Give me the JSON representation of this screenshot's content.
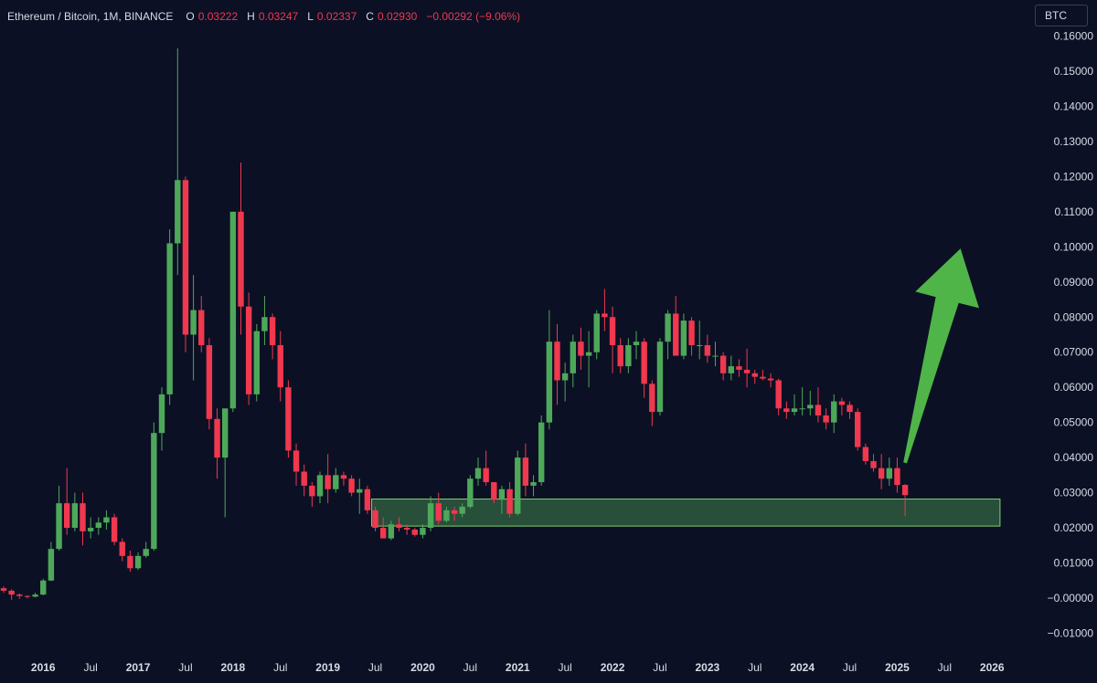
{
  "legend": {
    "symbol": "Ethereum / Bitcoin, 1M, BINANCE",
    "o_label": "O",
    "o_value": "0.03222",
    "h_label": "H",
    "h_value": "0.03247",
    "l_label": "L",
    "l_value": "0.02337",
    "c_label": "C",
    "c_value": "0.02930",
    "change": "−0.00292 (−9.06%)"
  },
  "unit_badge": "BTC",
  "colors": {
    "background": "#0c1024",
    "up": "#4ea85a",
    "down": "#f0384f",
    "zone_fill": "#4ea85a",
    "arrow": "#4fb548",
    "axis_text": "#d7dbe6"
  },
  "chart_data": {
    "type": "candlestick",
    "title": "Ethereum / Bitcoin, 1M, BINANCE",
    "ylim": [
      -0.013,
      0.163
    ],
    "y_ticks": [
      {
        "value": 0.16,
        "label": "0.16000"
      },
      {
        "value": 0.15,
        "label": "0.15000"
      },
      {
        "value": 0.14,
        "label": "0.14000"
      },
      {
        "value": 0.13,
        "label": "0.13000"
      },
      {
        "value": 0.12,
        "label": "0.12000"
      },
      {
        "value": 0.11,
        "label": "0.11000"
      },
      {
        "value": 0.1,
        "label": "0.10000"
      },
      {
        "value": 0.09,
        "label": "0.09000"
      },
      {
        "value": 0.08,
        "label": "0.08000"
      },
      {
        "value": 0.07,
        "label": "0.07000"
      },
      {
        "value": 0.06,
        "label": "0.06000"
      },
      {
        "value": 0.05,
        "label": "0.05000"
      },
      {
        "value": 0.04,
        "label": "0.04000"
      },
      {
        "value": 0.03,
        "label": "0.03000"
      },
      {
        "value": 0.02,
        "label": "0.02000"
      },
      {
        "value": 0.01,
        "label": "0.01000"
      },
      {
        "value": 0.0,
        "label": "−0.00000"
      },
      {
        "value": -0.01,
        "label": "−0.01000"
      }
    ],
    "x_start": "2015-08",
    "x_ticks": [
      {
        "date": "2016-01",
        "label": "2016",
        "bold": true
      },
      {
        "date": "2016-07",
        "label": "Jul",
        "bold": false
      },
      {
        "date": "2017-01",
        "label": "2017",
        "bold": true
      },
      {
        "date": "2017-07",
        "label": "Jul",
        "bold": false
      },
      {
        "date": "2018-01",
        "label": "2018",
        "bold": true
      },
      {
        "date": "2018-07",
        "label": "Jul",
        "bold": false
      },
      {
        "date": "2019-01",
        "label": "2019",
        "bold": true
      },
      {
        "date": "2019-07",
        "label": "Jul",
        "bold": false
      },
      {
        "date": "2020-01",
        "label": "2020",
        "bold": true
      },
      {
        "date": "2020-07",
        "label": "Jul",
        "bold": false
      },
      {
        "date": "2021-01",
        "label": "2021",
        "bold": true
      },
      {
        "date": "2021-07",
        "label": "Jul",
        "bold": false
      },
      {
        "date": "2022-01",
        "label": "2022",
        "bold": true
      },
      {
        "date": "2022-07",
        "label": "Jul",
        "bold": false
      },
      {
        "date": "2023-01",
        "label": "2023",
        "bold": true
      },
      {
        "date": "2023-07",
        "label": "Jul",
        "bold": false
      },
      {
        "date": "2024-01",
        "label": "2024",
        "bold": true
      },
      {
        "date": "2024-07",
        "label": "Jul",
        "bold": false
      },
      {
        "date": "2025-01",
        "label": "2025",
        "bold": true
      },
      {
        "date": "2025-07",
        "label": "Jul",
        "bold": false
      },
      {
        "date": "2026-01",
        "label": "2026",
        "bold": true
      }
    ],
    "candles": [
      {
        "date": "2015-08",
        "o": 0.0028,
        "h": 0.0033,
        "l": 0.0015,
        "c": 0.0021
      },
      {
        "date": "2015-09",
        "o": 0.0021,
        "h": 0.0025,
        "l": -0.0005,
        "c": 0.001
      },
      {
        "date": "2015-10",
        "o": 0.001,
        "h": 0.0013,
        "l": -0.0002,
        "c": 0.0006
      },
      {
        "date": "2015-11",
        "o": 0.0006,
        "h": 0.0008,
        "l": -0.0001,
        "c": 0.0004
      },
      {
        "date": "2015-12",
        "o": 0.0004,
        "h": 0.0015,
        "l": 0.0002,
        "c": 0.001
      },
      {
        "date": "2016-01",
        "o": 0.001,
        "h": 0.0055,
        "l": 0.0008,
        "c": 0.005
      },
      {
        "date": "2016-02",
        "o": 0.005,
        "h": 0.016,
        "l": 0.0048,
        "c": 0.014
      },
      {
        "date": "2016-03",
        "o": 0.014,
        "h": 0.032,
        "l": 0.0135,
        "c": 0.027
      },
      {
        "date": "2016-04",
        "o": 0.027,
        "h": 0.037,
        "l": 0.018,
        "c": 0.02
      },
      {
        "date": "2016-05",
        "o": 0.02,
        "h": 0.03,
        "l": 0.019,
        "c": 0.027
      },
      {
        "date": "2016-06",
        "o": 0.027,
        "h": 0.03,
        "l": 0.015,
        "c": 0.019
      },
      {
        "date": "2016-07",
        "o": 0.019,
        "h": 0.023,
        "l": 0.017,
        "c": 0.02
      },
      {
        "date": "2016-08",
        "o": 0.02,
        "h": 0.023,
        "l": 0.018,
        "c": 0.0215
      },
      {
        "date": "2016-09",
        "o": 0.0215,
        "h": 0.025,
        "l": 0.0195,
        "c": 0.023
      },
      {
        "date": "2016-10",
        "o": 0.023,
        "h": 0.024,
        "l": 0.015,
        "c": 0.016
      },
      {
        "date": "2016-11",
        "o": 0.016,
        "h": 0.017,
        "l": 0.0105,
        "c": 0.012
      },
      {
        "date": "2016-12",
        "o": 0.012,
        "h": 0.0135,
        "l": 0.0075,
        "c": 0.0085
      },
      {
        "date": "2017-01",
        "o": 0.0085,
        "h": 0.013,
        "l": 0.008,
        "c": 0.012
      },
      {
        "date": "2017-02",
        "o": 0.012,
        "h": 0.016,
        "l": 0.0115,
        "c": 0.014
      },
      {
        "date": "2017-03",
        "o": 0.014,
        "h": 0.05,
        "l": 0.0135,
        "c": 0.047
      },
      {
        "date": "2017-04",
        "o": 0.047,
        "h": 0.06,
        "l": 0.042,
        "c": 0.058
      },
      {
        "date": "2017-05",
        "o": 0.058,
        "h": 0.105,
        "l": 0.055,
        "c": 0.101
      },
      {
        "date": "2017-06",
        "o": 0.101,
        "h": 0.1565,
        "l": 0.092,
        "c": 0.119
      },
      {
        "date": "2017-07",
        "o": 0.119,
        "h": 0.12,
        "l": 0.07,
        "c": 0.075
      },
      {
        "date": "2017-08",
        "o": 0.075,
        "h": 0.092,
        "l": 0.062,
        "c": 0.082
      },
      {
        "date": "2017-09",
        "o": 0.082,
        "h": 0.086,
        "l": 0.07,
        "c": 0.072
      },
      {
        "date": "2017-10",
        "o": 0.072,
        "h": 0.074,
        "l": 0.048,
        "c": 0.051
      },
      {
        "date": "2017-11",
        "o": 0.051,
        "h": 0.054,
        "l": 0.034,
        "c": 0.04
      },
      {
        "date": "2017-12",
        "o": 0.04,
        "h": 0.054,
        "l": 0.023,
        "c": 0.054
      },
      {
        "date": "2018-01",
        "o": 0.054,
        "h": 0.11,
        "l": 0.053,
        "c": 0.11
      },
      {
        "date": "2018-02",
        "o": 0.11,
        "h": 0.124,
        "l": 0.075,
        "c": 0.083
      },
      {
        "date": "2018-03",
        "o": 0.083,
        "h": 0.087,
        "l": 0.055,
        "c": 0.058
      },
      {
        "date": "2018-04",
        "o": 0.058,
        "h": 0.078,
        "l": 0.056,
        "c": 0.076
      },
      {
        "date": "2018-05",
        "o": 0.076,
        "h": 0.086,
        "l": 0.072,
        "c": 0.08
      },
      {
        "date": "2018-06",
        "o": 0.08,
        "h": 0.081,
        "l": 0.068,
        "c": 0.072
      },
      {
        "date": "2018-07",
        "o": 0.072,
        "h": 0.076,
        "l": 0.056,
        "c": 0.06
      },
      {
        "date": "2018-08",
        "o": 0.06,
        "h": 0.062,
        "l": 0.04,
        "c": 0.042
      },
      {
        "date": "2018-09",
        "o": 0.042,
        "h": 0.044,
        "l": 0.032,
        "c": 0.036
      },
      {
        "date": "2018-10",
        "o": 0.036,
        "h": 0.038,
        "l": 0.029,
        "c": 0.032
      },
      {
        "date": "2018-11",
        "o": 0.032,
        "h": 0.033,
        "l": 0.026,
        "c": 0.029
      },
      {
        "date": "2018-12",
        "o": 0.029,
        "h": 0.036,
        "l": 0.027,
        "c": 0.035
      },
      {
        "date": "2019-01",
        "o": 0.035,
        "h": 0.041,
        "l": 0.027,
        "c": 0.031
      },
      {
        "date": "2019-02",
        "o": 0.031,
        "h": 0.037,
        "l": 0.03,
        "c": 0.035
      },
      {
        "date": "2019-03",
        "o": 0.035,
        "h": 0.036,
        "l": 0.032,
        "c": 0.034
      },
      {
        "date": "2019-04",
        "o": 0.034,
        "h": 0.035,
        "l": 0.029,
        "c": 0.03
      },
      {
        "date": "2019-05",
        "o": 0.03,
        "h": 0.034,
        "l": 0.024,
        "c": 0.031
      },
      {
        "date": "2019-06",
        "o": 0.031,
        "h": 0.032,
        "l": 0.024,
        "c": 0.025
      },
      {
        "date": "2019-07",
        "o": 0.025,
        "h": 0.026,
        "l": 0.019,
        "c": 0.02
      },
      {
        "date": "2019-08",
        "o": 0.02,
        "h": 0.023,
        "l": 0.017,
        "c": 0.017
      },
      {
        "date": "2019-09",
        "o": 0.017,
        "h": 0.022,
        "l": 0.0165,
        "c": 0.021
      },
      {
        "date": "2019-10",
        "o": 0.021,
        "h": 0.023,
        "l": 0.019,
        "c": 0.02
      },
      {
        "date": "2019-11",
        "o": 0.02,
        "h": 0.021,
        "l": 0.018,
        "c": 0.0195
      },
      {
        "date": "2019-12",
        "o": 0.0195,
        "h": 0.02,
        "l": 0.0175,
        "c": 0.018
      },
      {
        "date": "2020-01",
        "o": 0.018,
        "h": 0.021,
        "l": 0.017,
        "c": 0.02
      },
      {
        "date": "2020-02",
        "o": 0.02,
        "h": 0.029,
        "l": 0.019,
        "c": 0.027
      },
      {
        "date": "2020-03",
        "o": 0.027,
        "h": 0.03,
        "l": 0.021,
        "c": 0.022
      },
      {
        "date": "2020-04",
        "o": 0.022,
        "h": 0.026,
        "l": 0.0215,
        "c": 0.025
      },
      {
        "date": "2020-05",
        "o": 0.025,
        "h": 0.026,
        "l": 0.022,
        "c": 0.024
      },
      {
        "date": "2020-06",
        "o": 0.024,
        "h": 0.027,
        "l": 0.023,
        "c": 0.026
      },
      {
        "date": "2020-07",
        "o": 0.026,
        "h": 0.035,
        "l": 0.0255,
        "c": 0.034
      },
      {
        "date": "2020-08",
        "o": 0.034,
        "h": 0.04,
        "l": 0.032,
        "c": 0.037
      },
      {
        "date": "2020-09",
        "o": 0.037,
        "h": 0.042,
        "l": 0.032,
        "c": 0.033
      },
      {
        "date": "2020-10",
        "o": 0.033,
        "h": 0.033,
        "l": 0.027,
        "c": 0.028
      },
      {
        "date": "2020-11",
        "o": 0.028,
        "h": 0.032,
        "l": 0.024,
        "c": 0.031
      },
      {
        "date": "2020-12",
        "o": 0.031,
        "h": 0.033,
        "l": 0.023,
        "c": 0.024
      },
      {
        "date": "2021-01",
        "o": 0.024,
        "h": 0.042,
        "l": 0.0235,
        "c": 0.04
      },
      {
        "date": "2021-02",
        "o": 0.04,
        "h": 0.044,
        "l": 0.029,
        "c": 0.032
      },
      {
        "date": "2021-03",
        "o": 0.032,
        "h": 0.035,
        "l": 0.029,
        "c": 0.033
      },
      {
        "date": "2021-04",
        "o": 0.033,
        "h": 0.052,
        "l": 0.032,
        "c": 0.05
      },
      {
        "date": "2021-05",
        "o": 0.05,
        "h": 0.082,
        "l": 0.048,
        "c": 0.073
      },
      {
        "date": "2021-06",
        "o": 0.073,
        "h": 0.078,
        "l": 0.055,
        "c": 0.062
      },
      {
        "date": "2021-07",
        "o": 0.062,
        "h": 0.067,
        "l": 0.056,
        "c": 0.064
      },
      {
        "date": "2021-08",
        "o": 0.064,
        "h": 0.075,
        "l": 0.06,
        "c": 0.073
      },
      {
        "date": "2021-09",
        "o": 0.073,
        "h": 0.077,
        "l": 0.065,
        "c": 0.069
      },
      {
        "date": "2021-10",
        "o": 0.069,
        "h": 0.076,
        "l": 0.06,
        "c": 0.07
      },
      {
        "date": "2021-11",
        "o": 0.07,
        "h": 0.082,
        "l": 0.068,
        "c": 0.081
      },
      {
        "date": "2021-12",
        "o": 0.081,
        "h": 0.088,
        "l": 0.076,
        "c": 0.08
      },
      {
        "date": "2022-01",
        "o": 0.08,
        "h": 0.083,
        "l": 0.064,
        "c": 0.072
      },
      {
        "date": "2022-02",
        "o": 0.072,
        "h": 0.074,
        "l": 0.064,
        "c": 0.066
      },
      {
        "date": "2022-03",
        "o": 0.066,
        "h": 0.074,
        "l": 0.064,
        "c": 0.072
      },
      {
        "date": "2022-04",
        "o": 0.072,
        "h": 0.076,
        "l": 0.068,
        "c": 0.073
      },
      {
        "date": "2022-05",
        "o": 0.073,
        "h": 0.074,
        "l": 0.057,
        "c": 0.061
      },
      {
        "date": "2022-06",
        "o": 0.061,
        "h": 0.062,
        "l": 0.049,
        "c": 0.053
      },
      {
        "date": "2022-07",
        "o": 0.053,
        "h": 0.074,
        "l": 0.052,
        "c": 0.073
      },
      {
        "date": "2022-08",
        "o": 0.073,
        "h": 0.082,
        "l": 0.068,
        "c": 0.081
      },
      {
        "date": "2022-09",
        "o": 0.081,
        "h": 0.086,
        "l": 0.069,
        "c": 0.069
      },
      {
        "date": "2022-10",
        "o": 0.069,
        "h": 0.081,
        "l": 0.068,
        "c": 0.079
      },
      {
        "date": "2022-11",
        "o": 0.079,
        "h": 0.08,
        "l": 0.069,
        "c": 0.072
      },
      {
        "date": "2022-12",
        "o": 0.072,
        "h": 0.079,
        "l": 0.068,
        "c": 0.072
      },
      {
        "date": "2023-01",
        "o": 0.072,
        "h": 0.075,
        "l": 0.067,
        "c": 0.069
      },
      {
        "date": "2023-02",
        "o": 0.069,
        "h": 0.073,
        "l": 0.066,
        "c": 0.069
      },
      {
        "date": "2023-03",
        "o": 0.069,
        "h": 0.07,
        "l": 0.062,
        "c": 0.064
      },
      {
        "date": "2023-04",
        "o": 0.064,
        "h": 0.069,
        "l": 0.062,
        "c": 0.066
      },
      {
        "date": "2023-05",
        "o": 0.066,
        "h": 0.068,
        "l": 0.063,
        "c": 0.065
      },
      {
        "date": "2023-06",
        "o": 0.065,
        "h": 0.071,
        "l": 0.06,
        "c": 0.064
      },
      {
        "date": "2023-07",
        "o": 0.064,
        "h": 0.065,
        "l": 0.061,
        "c": 0.063
      },
      {
        "date": "2023-08",
        "o": 0.063,
        "h": 0.065,
        "l": 0.062,
        "c": 0.0625
      },
      {
        "date": "2023-09",
        "o": 0.0625,
        "h": 0.064,
        "l": 0.06,
        "c": 0.062
      },
      {
        "date": "2023-10",
        "o": 0.062,
        "h": 0.0625,
        "l": 0.052,
        "c": 0.054
      },
      {
        "date": "2023-11",
        "o": 0.054,
        "h": 0.056,
        "l": 0.051,
        "c": 0.053
      },
      {
        "date": "2023-12",
        "o": 0.053,
        "h": 0.058,
        "l": 0.052,
        "c": 0.054
      },
      {
        "date": "2024-01",
        "o": 0.054,
        "h": 0.06,
        "l": 0.052,
        "c": 0.054
      },
      {
        "date": "2024-02",
        "o": 0.054,
        "h": 0.059,
        "l": 0.052,
        "c": 0.055
      },
      {
        "date": "2024-03",
        "o": 0.055,
        "h": 0.06,
        "l": 0.05,
        "c": 0.052
      },
      {
        "date": "2024-04",
        "o": 0.052,
        "h": 0.054,
        "l": 0.048,
        "c": 0.05
      },
      {
        "date": "2024-05",
        "o": 0.05,
        "h": 0.058,
        "l": 0.047,
        "c": 0.056
      },
      {
        "date": "2024-06",
        "o": 0.056,
        "h": 0.057,
        "l": 0.052,
        "c": 0.055
      },
      {
        "date": "2024-07",
        "o": 0.055,
        "h": 0.056,
        "l": 0.051,
        "c": 0.053
      },
      {
        "date": "2024-08",
        "o": 0.053,
        "h": 0.054,
        "l": 0.042,
        "c": 0.043
      },
      {
        "date": "2024-09",
        "o": 0.043,
        "h": 0.044,
        "l": 0.038,
        "c": 0.039
      },
      {
        "date": "2024-10",
        "o": 0.039,
        "h": 0.041,
        "l": 0.036,
        "c": 0.037
      },
      {
        "date": "2024-11",
        "o": 0.037,
        "h": 0.041,
        "l": 0.031,
        "c": 0.034
      },
      {
        "date": "2024-12",
        "o": 0.034,
        "h": 0.04,
        "l": 0.032,
        "c": 0.037
      },
      {
        "date": "2025-01",
        "o": 0.037,
        "h": 0.04,
        "l": 0.03,
        "c": 0.0322
      },
      {
        "date": "2025-02",
        "o": 0.03222,
        "h": 0.03247,
        "l": 0.02337,
        "c": 0.0293
      }
    ],
    "support_zone": {
      "y_low": 0.0205,
      "y_high": 0.0282,
      "x_from": "2019-07",
      "x_to": "2026-02"
    },
    "arrow": {
      "tail": {
        "date": "2025-02",
        "y": 0.0385
      },
      "head": {
        "date": "2025-09",
        "y": 0.0995
      }
    }
  }
}
